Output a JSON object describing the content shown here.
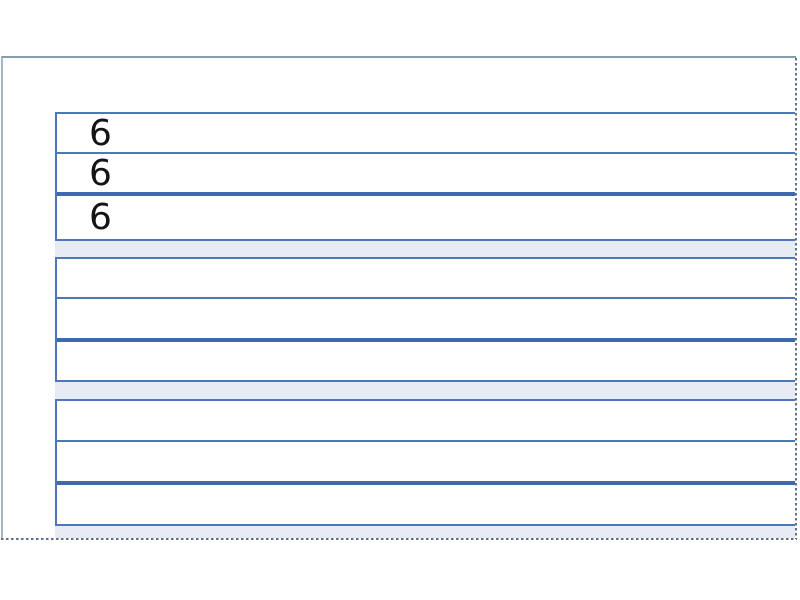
{
  "worksheet": {
    "description_label": "number-tracing-practice-lines",
    "number_groups": [
      {
        "rows": [
          {
            "text": "6"
          },
          {
            "text": "6"
          },
          {
            "text": "6"
          }
        ]
      },
      {
        "rows": [
          {
            "text": ""
          },
          {
            "text": ""
          },
          {
            "text": ""
          }
        ]
      },
      {
        "rows": [
          {
            "text": ""
          },
          {
            "text": ""
          },
          {
            "text": ""
          }
        ]
      }
    ]
  },
  "colors": {
    "row_border": "#4d77b8",
    "thick_divider": "#3e69b0",
    "table_background": "#e7ebf4",
    "frame_top_border": "#849bae",
    "frame_left_border": "#a7b7c8",
    "dashed_border": "#5d7190",
    "digit_color": "#141414"
  }
}
